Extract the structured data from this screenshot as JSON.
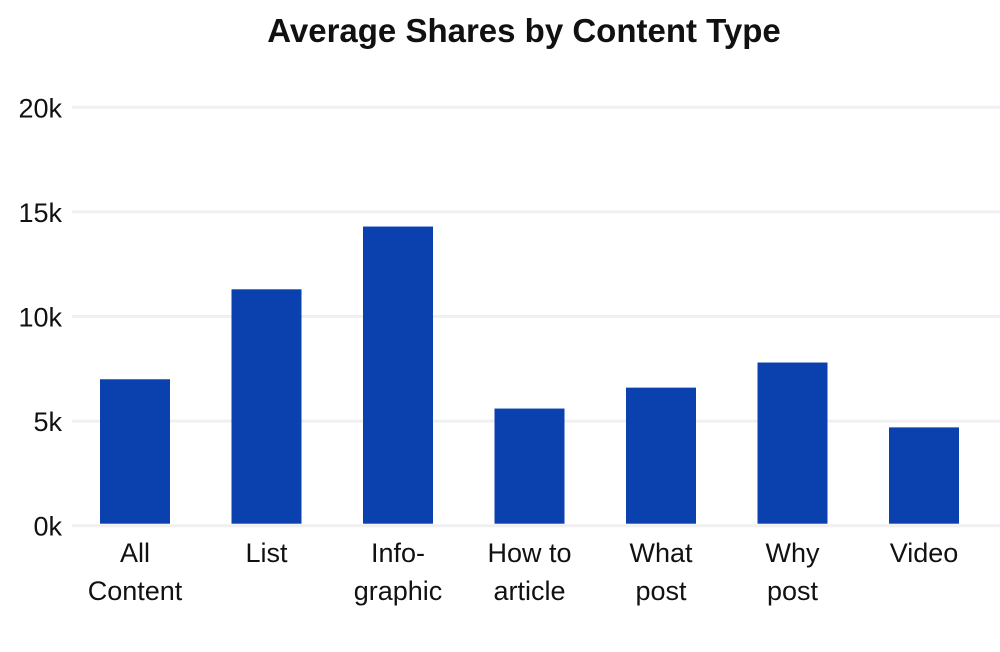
{
  "chart_data": {
    "type": "bar",
    "title": "Average Shares by Content Type",
    "xlabel": "",
    "ylabel": "",
    "categories": [
      [
        "All",
        "Content"
      ],
      [
        "List"
      ],
      [
        "Info-",
        "graphic"
      ],
      [
        "How to",
        "article"
      ],
      [
        "What",
        "post"
      ],
      [
        "Why",
        "post"
      ],
      [
        "Video"
      ]
    ],
    "values": [
      7000,
      11300,
      14300,
      5600,
      6600,
      7800,
      4700
    ],
    "yticks": [
      {
        "value": 0,
        "label": "0k"
      },
      {
        "value": 5000,
        "label": "5k"
      },
      {
        "value": 10000,
        "label": "10k"
      },
      {
        "value": 15000,
        "label": "15k"
      },
      {
        "value": 20000,
        "label": "20k"
      }
    ],
    "ylim": [
      0,
      20000
    ],
    "grid": true,
    "legend": "none",
    "colors": {
      "bar": "#0a41ae",
      "grid": "#f0f0f2"
    }
  }
}
